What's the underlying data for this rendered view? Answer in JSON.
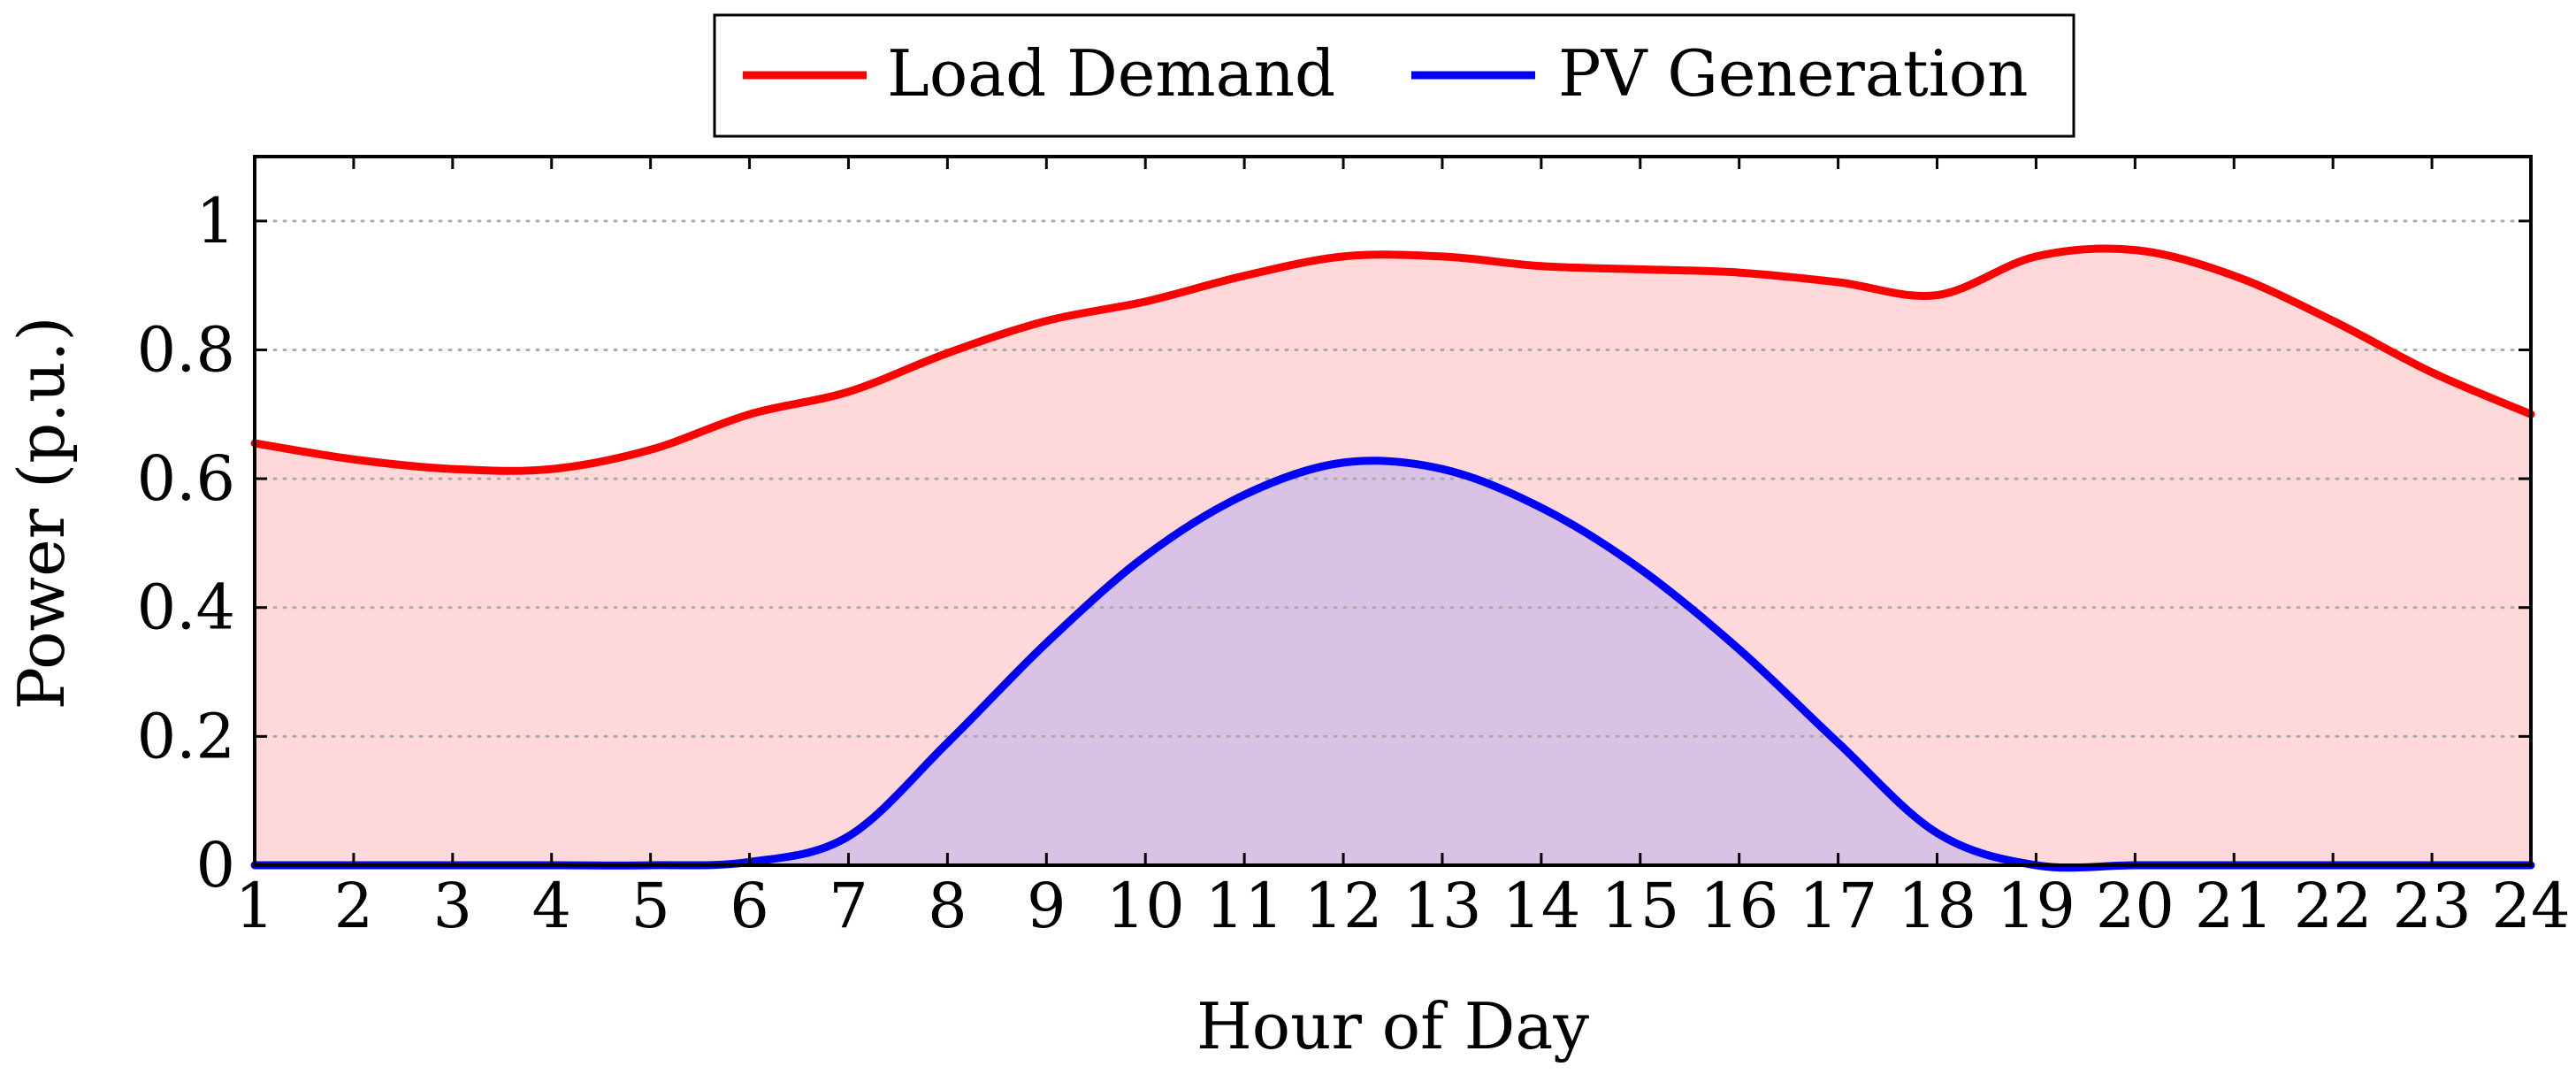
{
  "chart_data": {
    "type": "area",
    "title": "",
    "xlabel": "Hour of Day",
    "ylabel": "Power (p.u.)",
    "xlim": [
      1,
      24
    ],
    "ylim": [
      0,
      1.1
    ],
    "x_ticks": [
      1,
      2,
      3,
      4,
      5,
      6,
      7,
      8,
      9,
      10,
      11,
      12,
      13,
      14,
      15,
      16,
      17,
      18,
      19,
      20,
      21,
      22,
      23,
      24
    ],
    "y_ticks": [
      0,
      0.2,
      0.4,
      0.6,
      0.8,
      1
    ],
    "y_tick_labels": [
      "0",
      "0.2",
      "0.4",
      "0.6",
      "0.8",
      "1"
    ],
    "grid": "horizontal dotted",
    "legend_position": "top-center",
    "series": [
      {
        "name": "Load Demand",
        "color": "#ff0000",
        "fill": "#ffd9d9",
        "x": [
          1,
          2,
          3,
          4,
          5,
          6,
          7,
          8,
          9,
          10,
          11,
          12,
          13,
          14,
          15,
          16,
          17,
          18,
          19,
          20,
          21,
          22,
          23,
          24
        ],
        "values": [
          0.655,
          0.63,
          0.615,
          0.615,
          0.645,
          0.7,
          0.735,
          0.795,
          0.845,
          0.875,
          0.915,
          0.945,
          0.945,
          0.93,
          0.925,
          0.92,
          0.905,
          0.885,
          0.945,
          0.955,
          0.915,
          0.845,
          0.765,
          0.7
        ]
      },
      {
        "name": "PV Generation",
        "color": "#0000ff",
        "fill": "#d9c2e6",
        "x": [
          1,
          2,
          3,
          4,
          5,
          6,
          7,
          8,
          9,
          10,
          11,
          12,
          13,
          14,
          15,
          16,
          17,
          18,
          19,
          20,
          21,
          22,
          23,
          24
        ],
        "values": [
          0,
          0,
          0,
          0,
          0,
          0.005,
          0.045,
          0.19,
          0.345,
          0.48,
          0.575,
          0.625,
          0.615,
          0.555,
          0.46,
          0.335,
          0.19,
          0.05,
          0,
          0,
          0,
          0,
          0,
          0
        ]
      }
    ]
  }
}
